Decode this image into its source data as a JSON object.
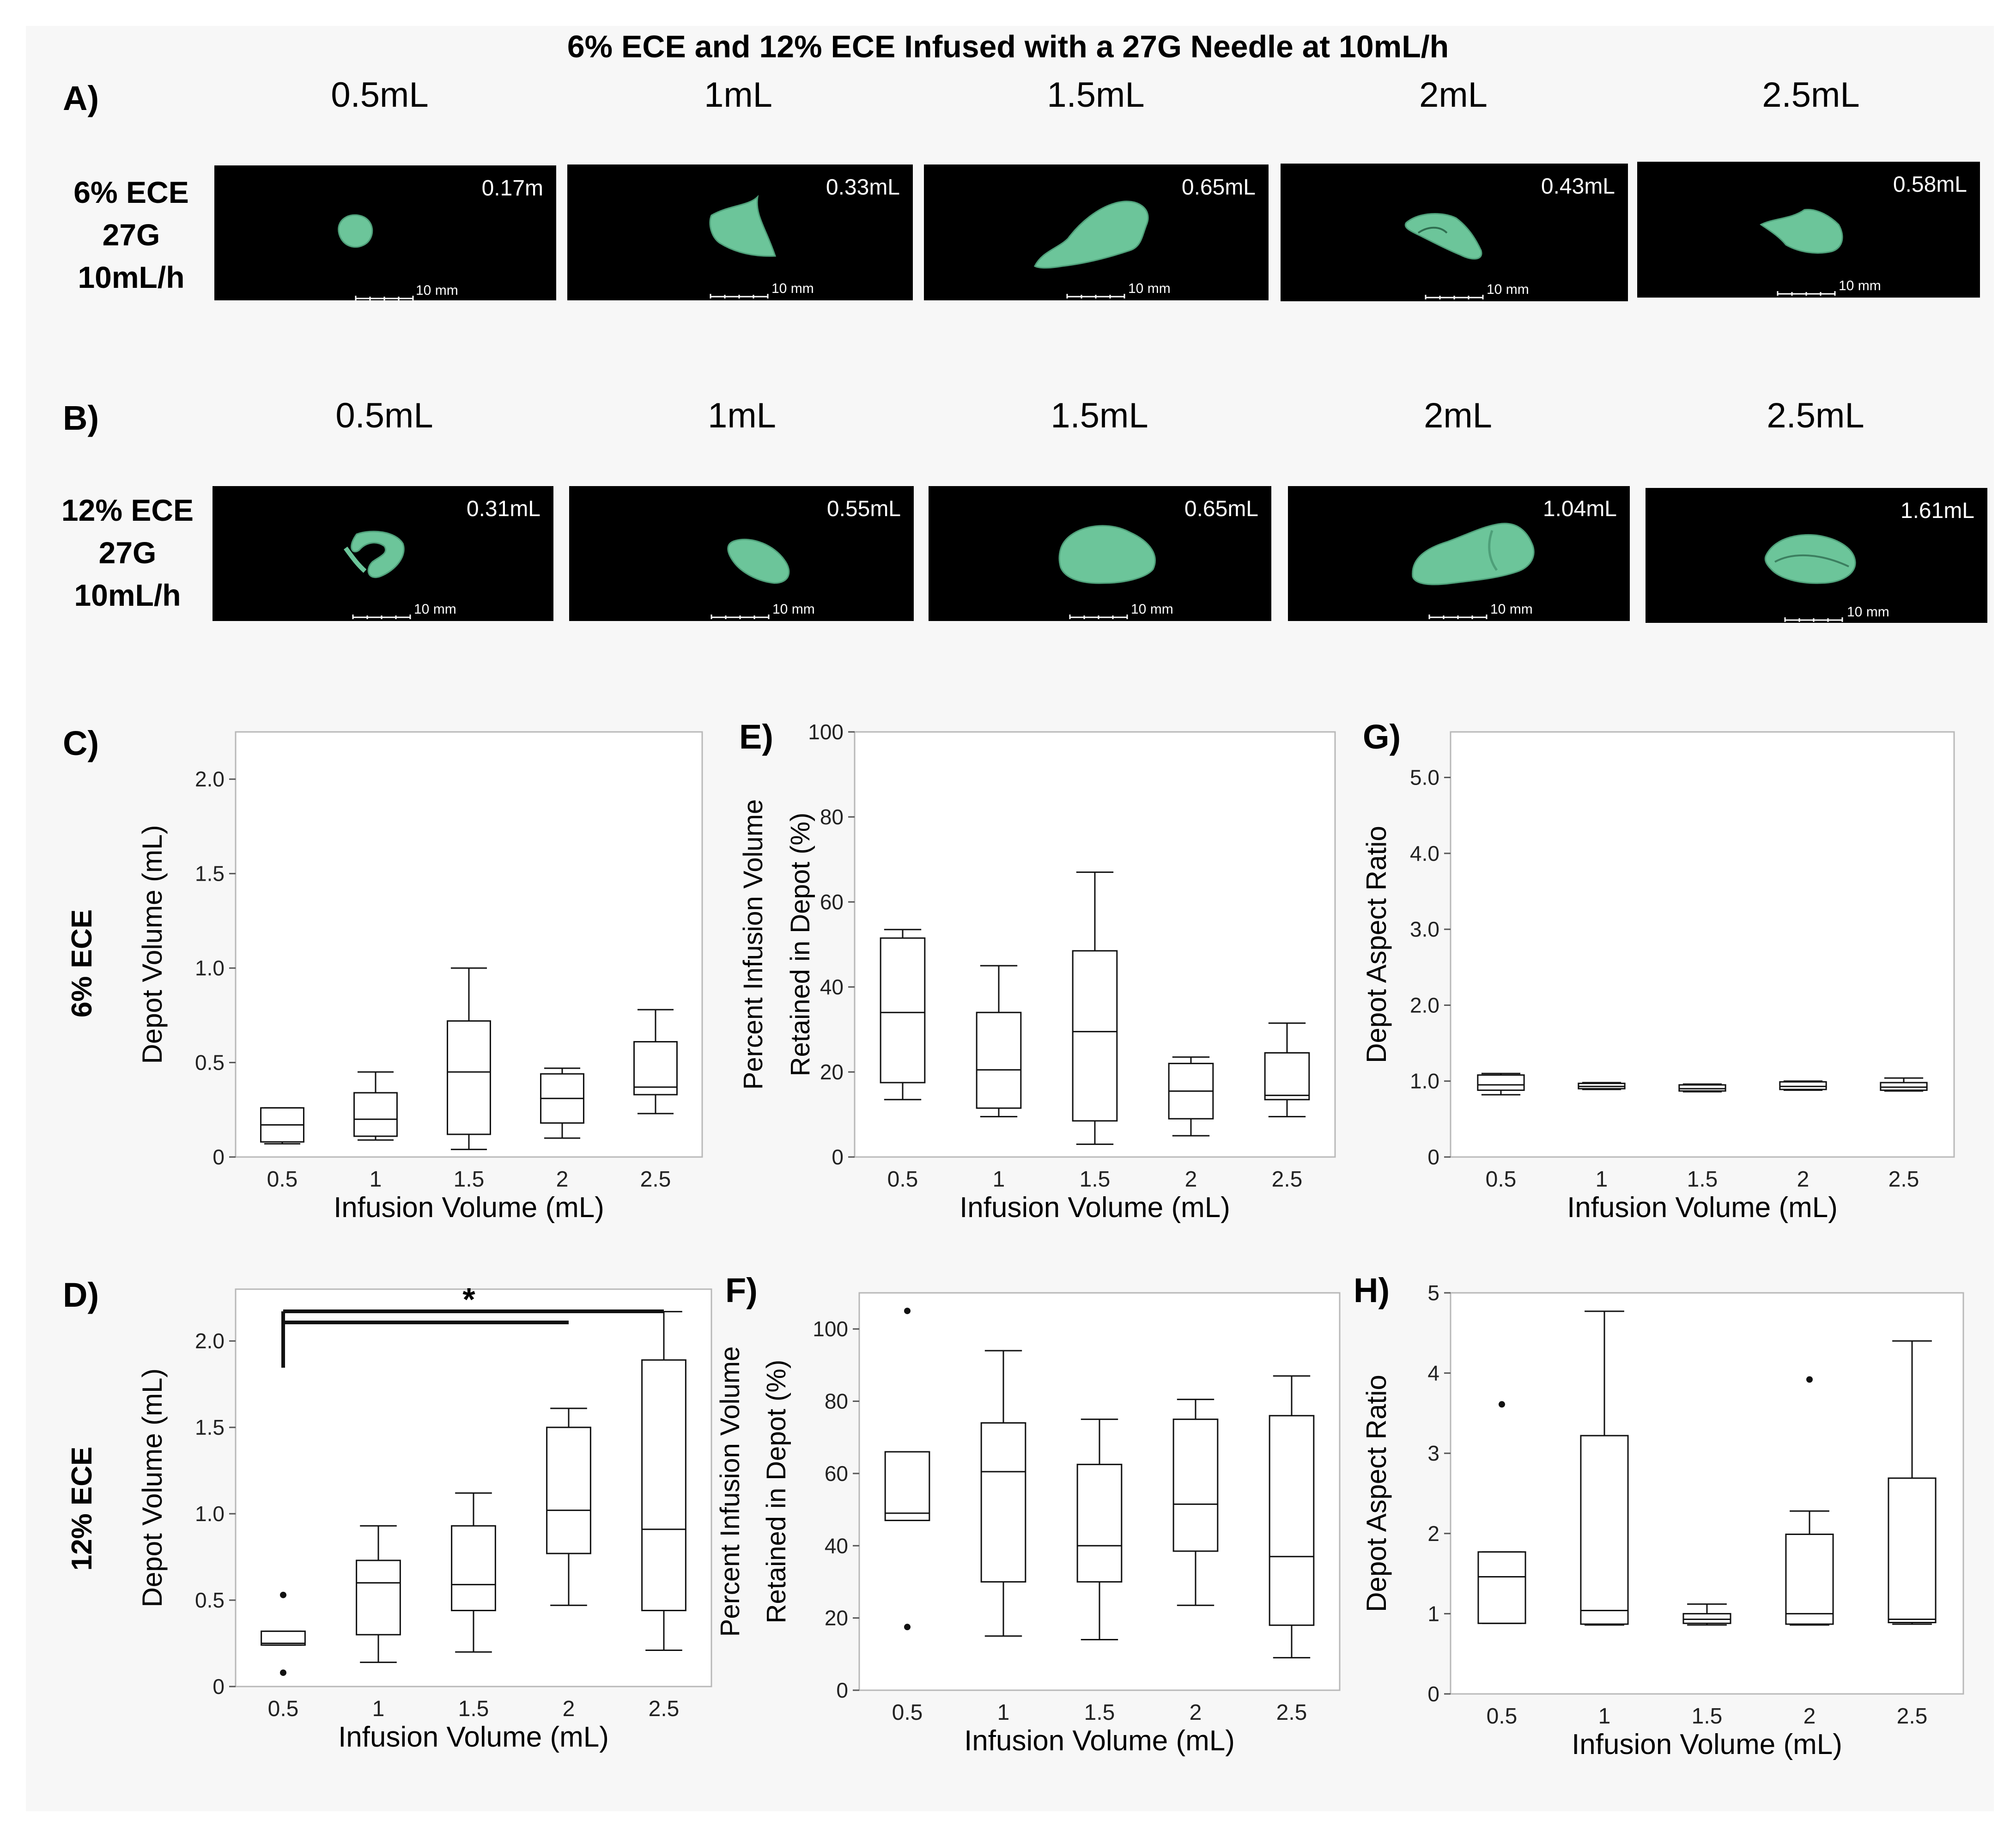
{
  "figure": {
    "title": "6% ECE and 12% ECE Infused with a 27G Needle at 10mL/h",
    "panel_labels": [
      "A)",
      "B)",
      "C)",
      "D)",
      "E)",
      "F)",
      "G)",
      "H)"
    ],
    "row_side_labels": [
      "6% ECE",
      "12% ECE"
    ]
  },
  "images": {
    "row_a": {
      "label_lines": [
        "6% ECE",
        "27G",
        "10mL/h"
      ],
      "volumes": [
        "0.5mL",
        "1mL",
        "1.5mL",
        "2mL",
        "2.5mL"
      ],
      "depot_values": [
        "0.17m",
        "0.33mL",
        "0.65mL",
        "0.43mL",
        "0.58mL"
      ],
      "scale_bar": "10 mm",
      "depot_color": "#6cc59a",
      "background": "#000000"
    },
    "row_b": {
      "label_lines": [
        "12% ECE",
        "27G",
        "10mL/h"
      ],
      "volumes": [
        "0.5mL",
        "1mL",
        "1.5mL",
        "2mL",
        "2.5mL"
      ],
      "depot_values": [
        "0.31mL",
        "0.55mL",
        "0.65mL",
        "1.04mL",
        "1.61mL"
      ],
      "scale_bar": "10 mm",
      "depot_color": "#6cc59a",
      "background": "#000000"
    }
  },
  "chart_data": [
    {
      "panel": "C)",
      "type": "box",
      "title": "",
      "xlabel": "Infusion Volume (mL)",
      "ylabel": "Depot Volume (mL)",
      "categories": [
        "0.5",
        "1",
        "1.5",
        "2",
        "2.5"
      ],
      "ylim": [
        0,
        2.25
      ],
      "yticks": [
        0,
        0.5,
        1.0,
        1.5,
        2.0
      ],
      "ytick_labels": [
        "0",
        "0.5",
        "1.0",
        "1.5",
        "2.0"
      ],
      "boxes": [
        {
          "min": 0.07,
          "q1": 0.08,
          "median": 0.17,
          "q3": 0.26,
          "max": 0.26
        },
        {
          "min": 0.09,
          "q1": 0.11,
          "median": 0.2,
          "q3": 0.34,
          "max": 0.45
        },
        {
          "min": 0.04,
          "q1": 0.12,
          "median": 0.45,
          "q3": 0.72,
          "max": 1.0
        },
        {
          "min": 0.1,
          "q1": 0.18,
          "median": 0.31,
          "q3": 0.44,
          "max": 0.47
        },
        {
          "min": 0.23,
          "q1": 0.33,
          "median": 0.37,
          "q3": 0.61,
          "max": 0.78
        }
      ],
      "outliers": [],
      "grid": false
    },
    {
      "panel": "E)",
      "type": "box",
      "title": "",
      "xlabel": "Infusion Volume (mL)",
      "ylabel": "Percent Infusion Volume Retained in Depot (%)",
      "ylabel_lines": [
        "Percent Infusion Volume",
        "Retained in Depot (%)"
      ],
      "categories": [
        "0.5",
        "1",
        "1.5",
        "2",
        "2.5"
      ],
      "ylim": [
        0,
        100
      ],
      "yticks": [
        0,
        20,
        40,
        60,
        80,
        100
      ],
      "ytick_labels": [
        "0",
        "20",
        "40",
        "60",
        "80",
        "100"
      ],
      "boxes": [
        {
          "min": 13.5,
          "q1": 17.5,
          "median": 34,
          "q3": 51.5,
          "max": 53.5
        },
        {
          "min": 9.5,
          "q1": 11.5,
          "median": 20.5,
          "q3": 34,
          "max": 45
        },
        {
          "min": 3,
          "q1": 8.5,
          "median": 29.5,
          "q3": 48.5,
          "max": 67
        },
        {
          "min": 5,
          "q1": 9,
          "median": 15.5,
          "q3": 22,
          "max": 23.5
        },
        {
          "min": 9.5,
          "q1": 13.5,
          "median": 14.5,
          "q3": 24.5,
          "max": 31.5
        }
      ],
      "outliers": [],
      "grid": false
    },
    {
      "panel": "G)",
      "type": "box",
      "title": "",
      "xlabel": "Infusion Volume (mL)",
      "ylabel": "Depot Aspect Ratio",
      "categories": [
        "0.5",
        "1",
        "1.5",
        "2",
        "2.5"
      ],
      "ylim": [
        0,
        5.6
      ],
      "yticks": [
        0,
        1.0,
        2.0,
        3.0,
        4.0,
        5.0
      ],
      "ytick_labels": [
        "0",
        "1.0",
        "2.0",
        "3.0",
        "4.0",
        "5.0"
      ],
      "boxes": [
        {
          "min": 0.82,
          "q1": 0.88,
          "median": 0.95,
          "q3": 1.08,
          "max": 1.1
        },
        {
          "min": 0.89,
          "q1": 0.9,
          "median": 0.93,
          "q3": 0.97,
          "max": 0.98
        },
        {
          "min": 0.86,
          "q1": 0.87,
          "median": 0.9,
          "q3": 0.95,
          "max": 0.96
        },
        {
          "min": 0.88,
          "q1": 0.89,
          "median": 0.93,
          "q3": 0.99,
          "max": 1.0
        },
        {
          "min": 0.87,
          "q1": 0.88,
          "median": 0.92,
          "q3": 0.98,
          "max": 1.04
        }
      ],
      "outliers": [],
      "grid": false
    },
    {
      "panel": "D)",
      "type": "box",
      "title": "",
      "xlabel": "Infusion Volume (mL)",
      "ylabel": "Depot Volume (mL)",
      "categories": [
        "0.5",
        "1",
        "1.5",
        "2",
        "2.5"
      ],
      "ylim": [
        0,
        2.3
      ],
      "yticks": [
        0,
        0.5,
        1.0,
        1.5,
        2.0
      ],
      "ytick_labels": [
        "0",
        "0.5",
        "1.0",
        "1.5",
        "2.0"
      ],
      "boxes": [
        {
          "min": 0.24,
          "q1": 0.24,
          "median": 0.25,
          "q3": 0.32,
          "max": 0.32
        },
        {
          "min": 0.14,
          "q1": 0.3,
          "median": 0.6,
          "q3": 0.73,
          "max": 0.93
        },
        {
          "min": 0.2,
          "q1": 0.44,
          "median": 0.59,
          "q3": 0.93,
          "max": 1.12
        },
        {
          "min": 0.47,
          "q1": 0.77,
          "median": 1.02,
          "q3": 1.5,
          "max": 1.61
        },
        {
          "min": 0.21,
          "q1": 0.44,
          "median": 0.91,
          "q3": 1.89,
          "max": 2.17
        }
      ],
      "outliers": [
        {
          "category": "0.5",
          "value": 0.53
        },
        {
          "category": "0.5",
          "value": 0.08
        }
      ],
      "significance": {
        "from": "0.5",
        "to": [
          "2",
          "2.5"
        ],
        "label": "*"
      },
      "grid": false
    },
    {
      "panel": "F)",
      "type": "box",
      "title": "",
      "xlabel": "Infusion Volume (mL)",
      "ylabel": "Percent Infusion Volume Retained in Depot (%)",
      "ylabel_lines": [
        "Percent Infusion Volume",
        "Retained in Depot (%)"
      ],
      "categories": [
        "0.5",
        "1",
        "1.5",
        "2",
        "2.5"
      ],
      "ylim": [
        0,
        110
      ],
      "yticks": [
        0,
        20,
        40,
        60,
        80,
        100
      ],
      "ytick_labels": [
        "0",
        "20",
        "40",
        "60",
        "80",
        "100"
      ],
      "boxes": [
        {
          "min": 47,
          "q1": 47,
          "median": 49,
          "q3": 66,
          "max": 66
        },
        {
          "min": 15,
          "q1": 30,
          "median": 60.5,
          "q3": 74,
          "max": 94
        },
        {
          "min": 14,
          "q1": 30,
          "median": 40,
          "q3": 62.5,
          "max": 75
        },
        {
          "min": 23.5,
          "q1": 38.5,
          "median": 51.5,
          "q3": 75,
          "max": 80.5
        },
        {
          "min": 9,
          "q1": 18,
          "median": 37,
          "q3": 76,
          "max": 87
        }
      ],
      "outliers": [
        {
          "category": "0.5",
          "value": 105
        },
        {
          "category": "0.5",
          "value": 17.5
        }
      ],
      "grid": false
    },
    {
      "panel": "H)",
      "type": "box",
      "title": "",
      "xlabel": "Infusion Volume (mL)",
      "ylabel": "Depot Aspect Ratio",
      "categories": [
        "0.5",
        "1",
        "1.5",
        "2",
        "2.5"
      ],
      "ylim": [
        0,
        5
      ],
      "yticks": [
        0,
        1,
        2,
        3,
        4,
        5
      ],
      "ytick_labels": [
        "0",
        "1",
        "2",
        "3",
        "4",
        "5"
      ],
      "boxes": [
        {
          "min": 0.88,
          "q1": 0.88,
          "median": 1.46,
          "q3": 1.77,
          "max": 1.77
        },
        {
          "min": 0.86,
          "q1": 0.87,
          "median": 1.04,
          "q3": 3.22,
          "max": 4.77
        },
        {
          "min": 0.86,
          "q1": 0.88,
          "median": 0.93,
          "q3": 1.0,
          "max": 1.12
        },
        {
          "min": 0.86,
          "q1": 0.87,
          "median": 1.0,
          "q3": 1.99,
          "max": 2.28
        },
        {
          "min": 0.87,
          "q1": 0.89,
          "median": 0.93,
          "q3": 2.69,
          "max": 4.4
        }
      ],
      "outliers": [
        {
          "category": "0.5",
          "value": 3.61
        },
        {
          "category": "2",
          "value": 3.92
        }
      ],
      "grid": false
    }
  ]
}
